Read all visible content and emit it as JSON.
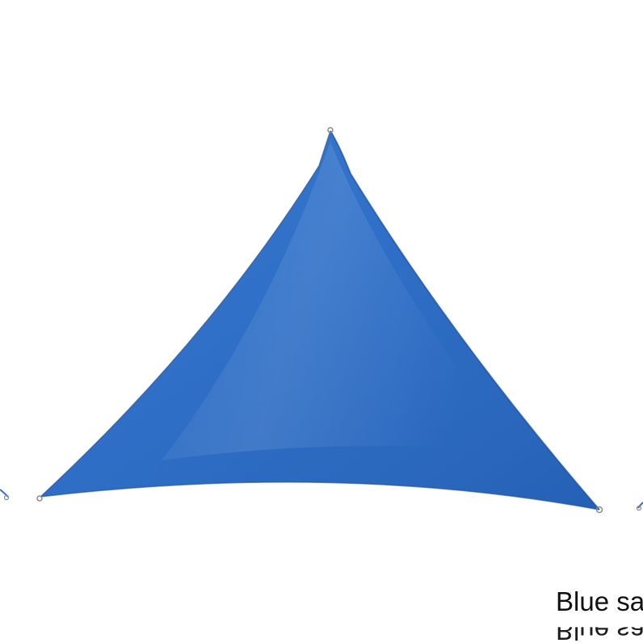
{
  "product": {
    "color_name": "Blue",
    "caption_text": "Blue sail",
    "sail_color": "#2f6fc7",
    "sail_highlight": "#4a8ad8",
    "sail_shadow": "#1f58aa"
  }
}
